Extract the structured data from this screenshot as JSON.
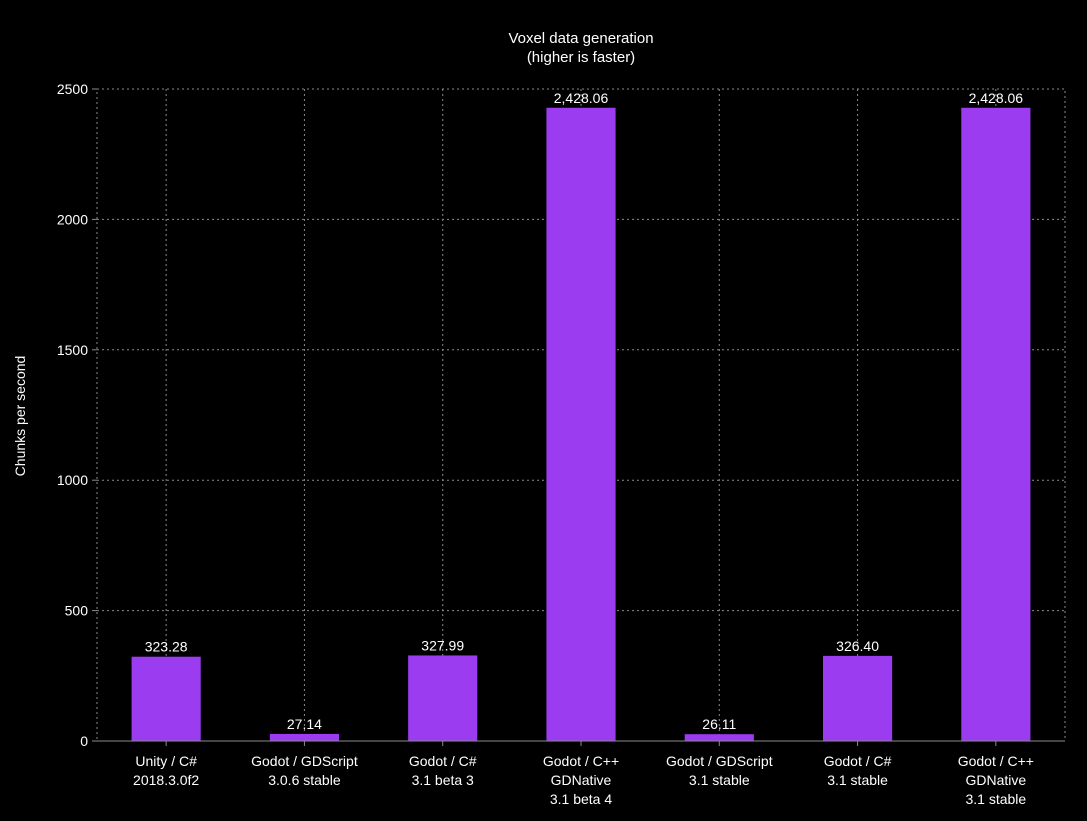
{
  "chart_data": {
    "type": "bar",
    "title": "Voxel data generation",
    "subtitle": "(higher is faster)",
    "xlabel": "",
    "ylabel": "Chunks per second",
    "ylim": [
      0,
      2500
    ],
    "yticks": [
      0,
      500,
      1000,
      1500,
      2000,
      2500
    ],
    "grid": true,
    "categories": [
      [
        "Unity / C#",
        "2018.3.0f2"
      ],
      [
        "Godot / GDScript",
        "3.0.6 stable"
      ],
      [
        "Godot / C#",
        "3.1 beta 3"
      ],
      [
        "Godot / C++",
        "GDNative",
        "3.1 beta 4"
      ],
      [
        "Godot / GDScript",
        "3.1 stable"
      ],
      [
        "Godot / C#",
        "3.1 stable"
      ],
      [
        "Godot / C++",
        "GDNative",
        "3.1 stable"
      ]
    ],
    "values": [
      323.28,
      27.14,
      327.99,
      2428.06,
      26.11,
      326.4,
      2428.06
    ],
    "value_labels": [
      "323.28",
      "27.14",
      "327.99",
      "2,428.06",
      "26.11",
      "326.40",
      "2,428.06"
    ],
    "colors": {
      "bar": "#9b3cf0",
      "background": "#000000",
      "grid": "#8a8a8a",
      "text": "#ffffff"
    }
  }
}
